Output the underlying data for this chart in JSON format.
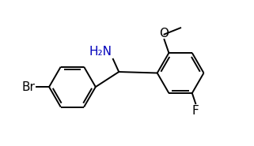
{
  "bg_color": "#ffffff",
  "bond_color": "#000000",
  "atom_colors": {
    "Br": "#000000",
    "F": "#000000",
    "O": "#000000",
    "N": "#0000bb",
    "C": "#000000"
  },
  "font_size": 11,
  "line_width": 1.4,
  "xlim": [
    0,
    10
  ],
  "ylim": [
    0,
    6.2
  ]
}
